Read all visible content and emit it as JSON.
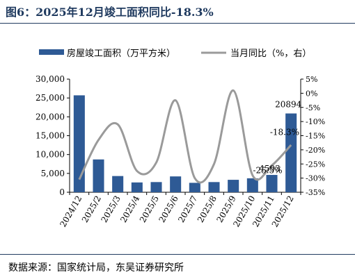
{
  "title": "图6：2025年12月竣工面积同比-18.3%",
  "source": "数据来源：国家统计局，东吴证券研究所",
  "chart_data": {
    "type": "bar+line",
    "categories": [
      "2024/12",
      "2025/2",
      "2025/3",
      "2025/4",
      "2025/5",
      "2025/6",
      "2025/7",
      "2025/8",
      "2025/9",
      "2025/10",
      "2025/11",
      "2025/12"
    ],
    "series": [
      {
        "name": "房屋竣工面积（万平方米）",
        "type": "bar",
        "axis": "left",
        "values": [
          25700,
          8700,
          4300,
          2600,
          2700,
          4200,
          2500,
          2700,
          3300,
          3700,
          4593,
          20894
        ],
        "color": "#2e5a95"
      },
      {
        "name": "当月同比（%，右）",
        "type": "line",
        "axis": "right",
        "values": [
          -30.5,
          -16.5,
          -11.0,
          -27.5,
          -24.5,
          -2.5,
          -30.0,
          -25.0,
          1.0,
          -29.0,
          -25.5,
          -18.3
        ],
        "color": "#9a9a9a"
      }
    ],
    "left_axis": {
      "ylim": [
        0,
        30000
      ],
      "ticks": [
        0,
        5000,
        10000,
        15000,
        20000,
        25000,
        30000
      ],
      "tick_labels": [
        "0",
        "5,000",
        "10,000",
        "15,000",
        "20,000",
        "25,000",
        "30,000"
      ]
    },
    "right_axis": {
      "ylim": [
        -35,
        5
      ],
      "ticks": [
        -35,
        -30,
        -25,
        -20,
        -15,
        -10,
        -5,
        0,
        5
      ],
      "tick_labels": [
        "-35%",
        "-30%",
        "-25%",
        "-20%",
        "-15%",
        "-10%",
        "-5%",
        "0%",
        "5%"
      ]
    },
    "annotations": [
      {
        "text": "20894",
        "category": "2025/12",
        "series": "bar"
      },
      {
        "text": "4593",
        "category": "2025/11",
        "series": "bar"
      },
      {
        "text": "-18.3%",
        "category": "2025/12",
        "series": "line"
      },
      {
        "text": "-25.5%",
        "category": "2025/11",
        "series": "line"
      }
    ],
    "legend_position": "top"
  }
}
